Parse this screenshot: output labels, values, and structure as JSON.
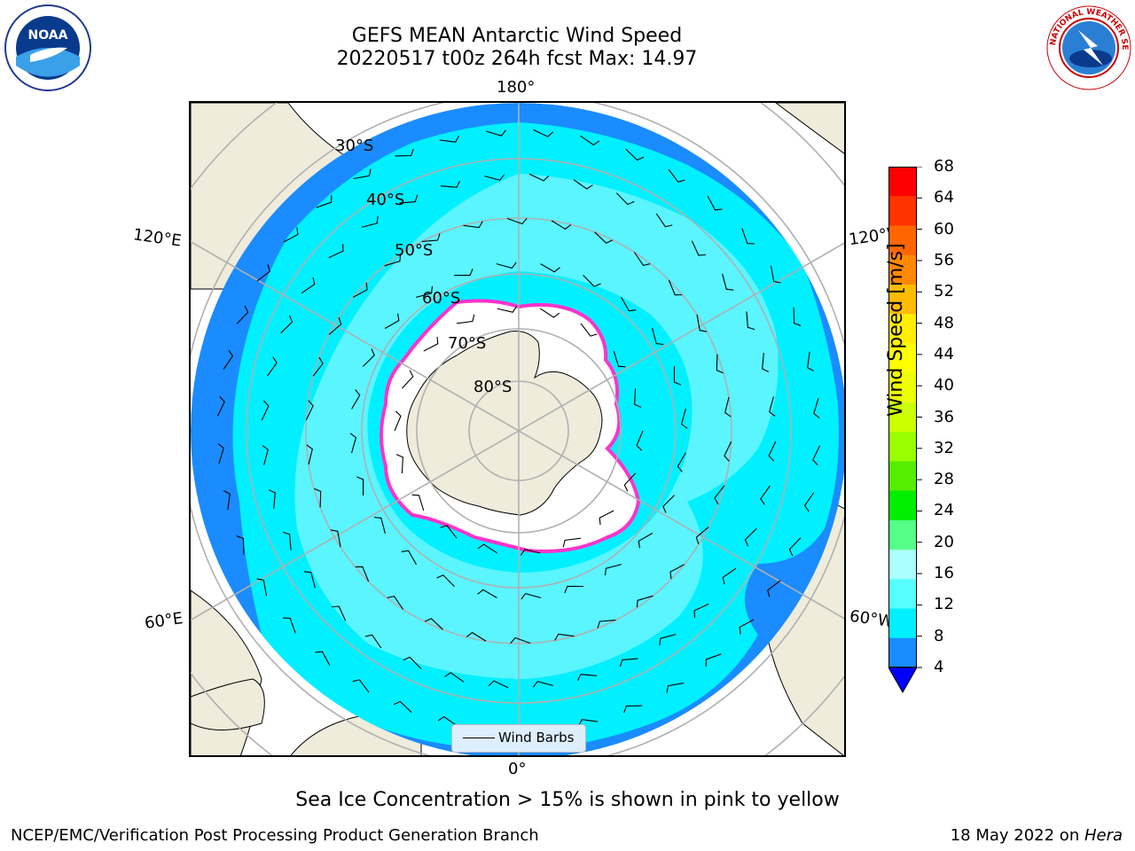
{
  "header": {
    "title_line1": "GEFS MEAN Antarctic Wind Speed",
    "title_line2": "20220517 t00z 264h fcst   Max: 14.97"
  },
  "logos": {
    "left": "noaa-logo",
    "left_text": "NOAA",
    "right": "national-weather-service-logo",
    "right_text": "NATIONAL WEATHER SERVICE"
  },
  "map": {
    "projection": "south-polar-stereographic",
    "lon_labels": {
      "top": "180°",
      "upper_left": "120°E",
      "upper_right": "120°W",
      "lower_left": "60°E",
      "lower_right": "60°W",
      "bottom": "0°"
    },
    "lat_labels": [
      "30°S",
      "40°S",
      "50°S",
      "60°S",
      "70°S",
      "80°S"
    ],
    "colors": {
      "ocean_outer": "#1a8cff",
      "ocean_main": "#00f0ff",
      "ocean_light": "#5af5ff",
      "land": "#efecdc",
      "sea_ice_edge": "#ff33cc",
      "graticule": "#b0b0b0"
    }
  },
  "legend": {
    "label": "Wind Barbs",
    "icon": "wind-barb-line-icon"
  },
  "colorbar": {
    "label": "Wind Speed [m/s]",
    "ticks": [
      "68",
      "64",
      "60",
      "56",
      "52",
      "48",
      "44",
      "40",
      "36",
      "32",
      "28",
      "24",
      "20",
      "16",
      "12",
      "8",
      "4"
    ],
    "colors_top_to_bottom": [
      "#ff0000",
      "#ff3300",
      "#ff6600",
      "#ff8800",
      "#ffbb00",
      "#ffee00",
      "#ffff00",
      "#eeff00",
      "#ccff00",
      "#99ff00",
      "#55ee00",
      "#00ee00",
      "#55ff88",
      "#aaffff",
      "#55ffff",
      "#00f0ff",
      "#1a8cff"
    ],
    "under_color": "#0000ff"
  },
  "subtitle": "Sea Ice Concentration > 15% is shown in pink to yellow",
  "footer": {
    "left": "NCEP/EMC/Verification Post Processing Product Generation Branch",
    "right_prefix": "18 May 2022 on ",
    "right_host": "Hera"
  }
}
